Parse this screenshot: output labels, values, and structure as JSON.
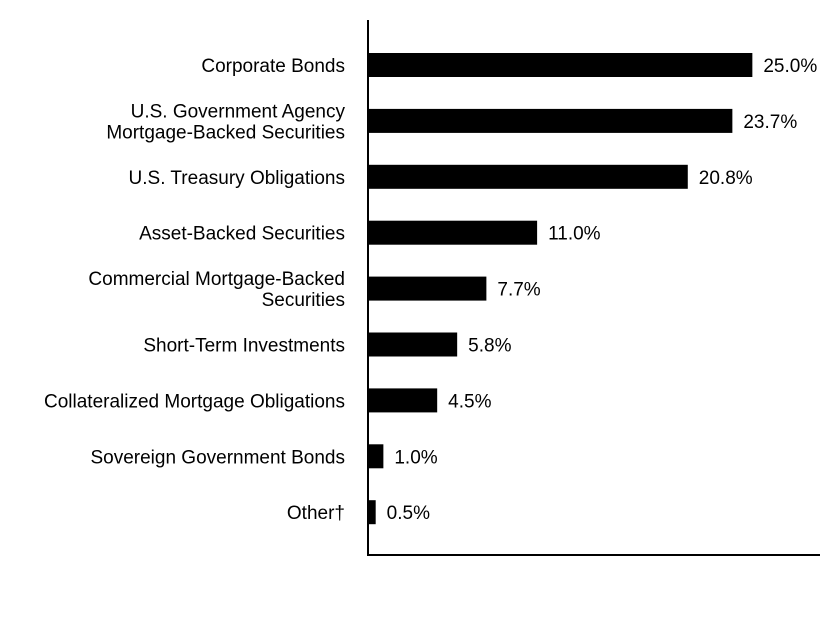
{
  "chart_data": {
    "type": "bar",
    "orientation": "horizontal",
    "categories": [
      [
        "Corporate Bonds"
      ],
      [
        "U.S. Government Agency",
        "Mortgage-Backed Securities"
      ],
      [
        "U.S. Treasury Obligations"
      ],
      [
        "Asset-Backed Securities"
      ],
      [
        "Commercial Mortgage-Backed",
        "Securities"
      ],
      [
        "Short-Term Investments"
      ],
      [
        "Collateralized Mortgage Obligations"
      ],
      [
        "Sovereign Government Bonds"
      ],
      [
        "Other†"
      ]
    ],
    "values": [
      25.0,
      23.7,
      20.8,
      11.0,
      7.7,
      5.8,
      4.5,
      1.0,
      0.5
    ],
    "value_labels": [
      "25.0%",
      "23.7%",
      "20.8%",
      "11.0%",
      "7.7%",
      "5.8%",
      "4.5%",
      "1.0%",
      "0.5%"
    ],
    "xlim": [
      0,
      29.4
    ],
    "grid": false,
    "colors": {
      "bar": "#000000",
      "axis": "#000000",
      "text": "#000000"
    }
  }
}
